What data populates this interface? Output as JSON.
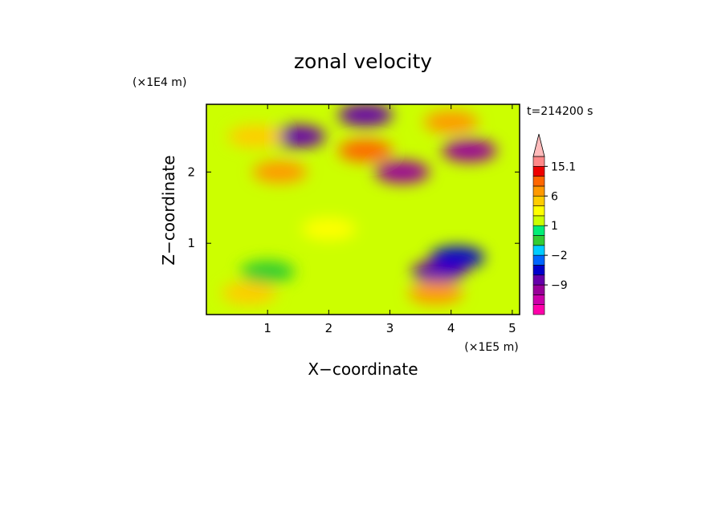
{
  "chart_data": {
    "type": "heatmap",
    "title": "zonal velocity",
    "xlabel": "X−coordinate",
    "ylabel": "Z−coordinate",
    "x_scale_label": "(×1E5 m)",
    "y_scale_label": "(×1E4 m)",
    "time_label": "t=214200 s",
    "xlim": [
      0,
      5.12
    ],
    "ylim": [
      0,
      2.95
    ],
    "x_ticks": [
      "1",
      "2",
      "3",
      "4",
      "5"
    ],
    "x_tick_values": [
      1,
      2,
      3,
      4,
      5
    ],
    "y_ticks": [
      "1",
      "2"
    ],
    "y_tick_values": [
      1,
      2
    ],
    "colorbar": {
      "levels": [
        -15,
        -12,
        -9,
        -6,
        -4,
        -2,
        -1,
        0,
        1,
        2,
        4,
        6,
        9,
        12,
        15.1
      ],
      "colors": [
        "#ff00aa",
        "#cc00aa",
        "#990099",
        "#6600aa",
        "#0000cc",
        "#0066ff",
        "#00ccff",
        "#33cc33",
        "#00ee77",
        "#ccff00",
        "#ffff00",
        "#ffcc00",
        "#ff9900",
        "#ff6600",
        "#ee0000",
        "#ff8888",
        "#ffbbbb"
      ],
      "tick_labels": [
        "15.1",
        "6",
        "1",
        "−2",
        "−9"
      ],
      "tick_values": [
        15.1,
        6,
        1,
        -2,
        -9
      ],
      "extend": "max"
    },
    "field_features": [
      {
        "x": 1.5,
        "z": 2.5,
        "value": -8
      },
      {
        "x": 2.6,
        "z": 2.8,
        "value": -8
      },
      {
        "x": 3.2,
        "z": 2.0,
        "value": -10
      },
      {
        "x": 4.3,
        "z": 2.3,
        "value": -12
      },
      {
        "x": 2.6,
        "z": 2.3,
        "value": 9
      },
      {
        "x": 1.2,
        "z": 2.0,
        "value": 6
      },
      {
        "x": 4.0,
        "z": 2.7,
        "value": 6
      },
      {
        "x": 0.8,
        "z": 2.5,
        "value": 4
      },
      {
        "x": 3.8,
        "z": 0.6,
        "value": -8
      },
      {
        "x": 4.1,
        "z": 0.8,
        "value": -6
      },
      {
        "x": 3.75,
        "z": 0.3,
        "value": 8
      },
      {
        "x": 0.7,
        "z": 0.3,
        "value": 5
      },
      {
        "x": 2.0,
        "z": 1.2,
        "value": 3
      },
      {
        "x": 1.0,
        "z": 0.6,
        "value": -1
      }
    ]
  }
}
